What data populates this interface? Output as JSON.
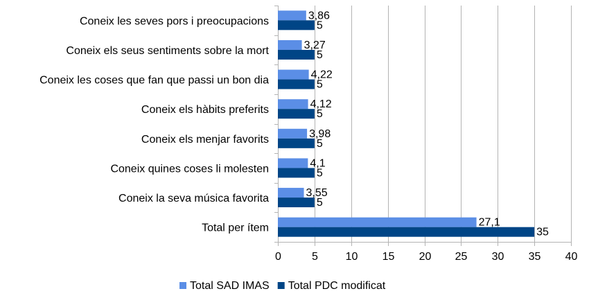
{
  "chart_data": {
    "type": "bar",
    "orientation": "horizontal",
    "title": "",
    "xlabel": "",
    "ylabel": "",
    "categories": [
      "Coneix les seves pors i preocupacions",
      "Coneix els seus sentiments sobre la mort",
      "Coneix les coses que fan que passi un bon dia",
      "Coneix els hàbits preferits",
      "Coneix els menjar favorits",
      "Coneix quines coses li molesten",
      "Coneix la seva música favorita",
      "Total per ítem"
    ],
    "series": [
      {
        "name": "Total SAD IMAS",
        "color": "#5b8ee6",
        "values": [
          3.86,
          3.27,
          4.22,
          4.12,
          3.98,
          4.1,
          3.55,
          27.1
        ],
        "labels": [
          "3,86",
          "3,27",
          "4,22",
          "4,12",
          "3,98",
          "4,1",
          "3,55",
          "27,1"
        ]
      },
      {
        "name": "Total PDC modificat",
        "color": "#004586",
        "values": [
          5,
          5,
          5,
          5,
          5,
          5,
          5,
          35
        ],
        "labels": [
          "5",
          "5",
          "5",
          "5",
          "5",
          "5",
          "5",
          "35"
        ]
      }
    ],
    "xlim": [
      0,
      40
    ],
    "xticks": [
      "0",
      "5",
      "10",
      "15",
      "20",
      "25",
      "30",
      "35",
      "40"
    ],
    "grid": "vertical",
    "legend_position": "bottom"
  }
}
